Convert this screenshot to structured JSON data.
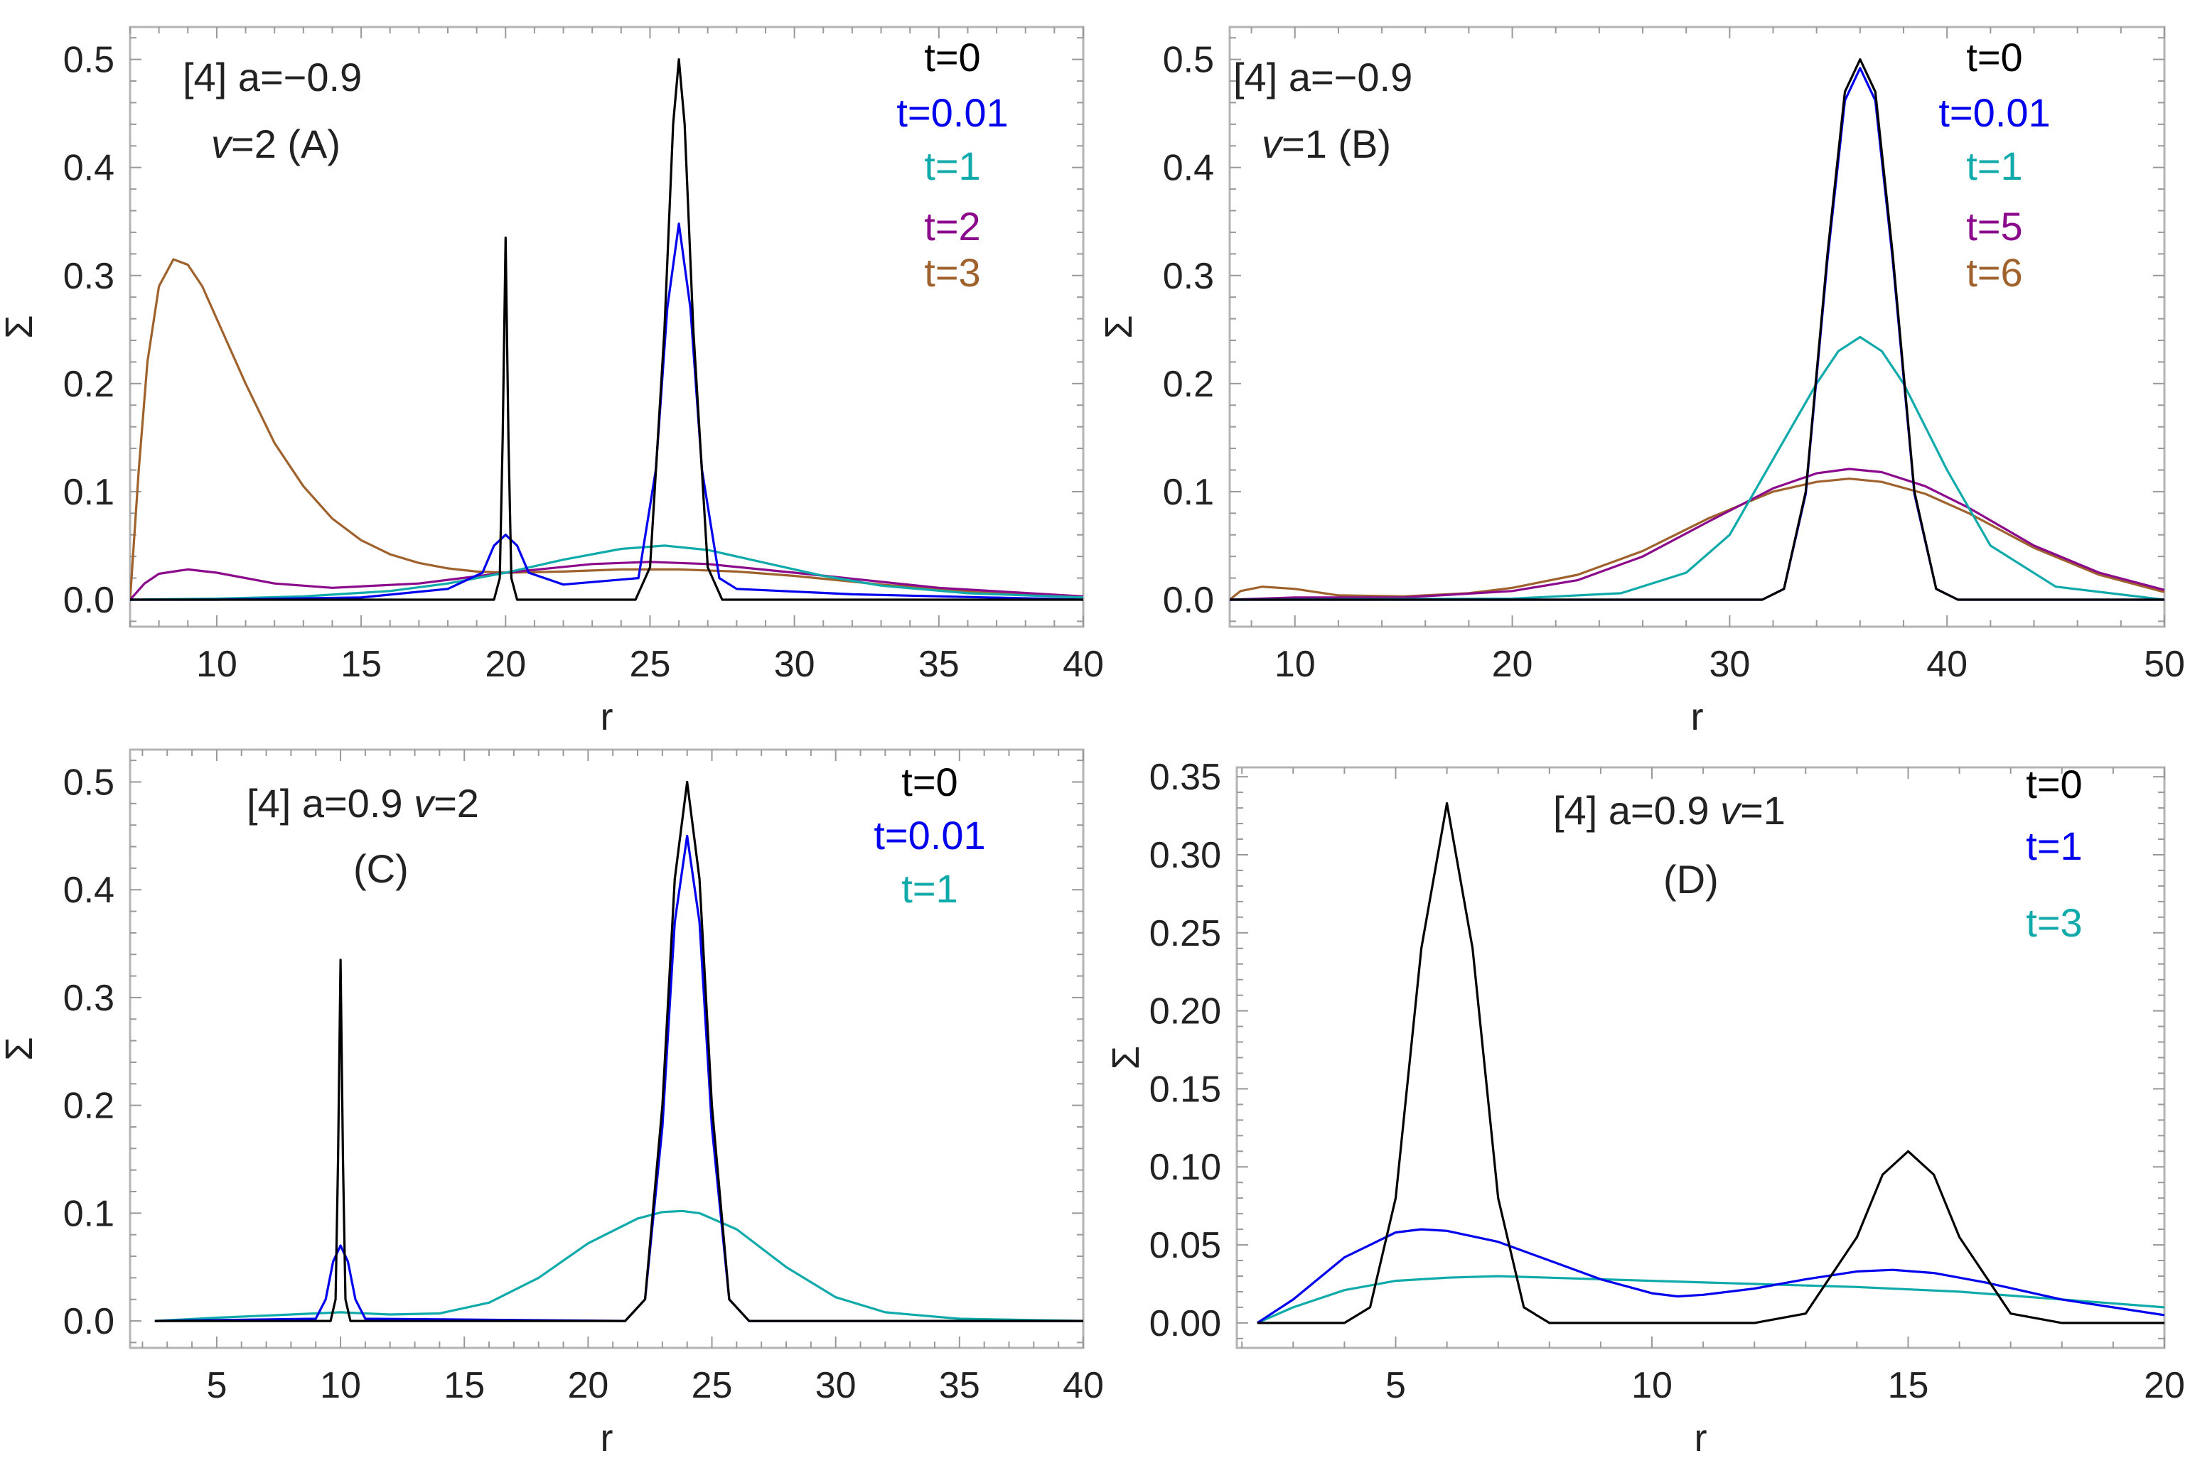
{
  "chart_data": [
    {
      "type": "line",
      "panel": "A",
      "annotation": [
        "[4] a=−0.9",
        "v=2 (A)"
      ],
      "xlabel": "r",
      "ylabel": "Σ",
      "xlim": [
        7,
        40
      ],
      "ylim": [
        -0.025,
        0.53
      ],
      "xticks": [
        10,
        15,
        20,
        25,
        30,
        35,
        40
      ],
      "xtick_labels": [
        "10",
        "15",
        "20",
        "25",
        "30",
        "35",
        "40"
      ],
      "yticks": [
        0.0,
        0.1,
        0.2,
        0.3,
        0.4,
        0.5
      ],
      "ytick_labels": [
        "0.0",
        "0.1",
        "0.2",
        "0.3",
        "0.4",
        "0.5"
      ],
      "grid": false,
      "legend": "top-right",
      "series": [
        {
          "name": "t=0",
          "color": "#000000",
          "x": [
            7,
            19.6,
            19.8,
            19.9,
            20.0,
            20.1,
            20.2,
            20.4,
            24.5,
            25.0,
            25.5,
            25.8,
            26.0,
            26.2,
            26.5,
            27.0,
            27.5,
            40
          ],
          "y": [
            0,
            0,
            0.02,
            0.15,
            0.335,
            0.15,
            0.02,
            0,
            0,
            0.03,
            0.25,
            0.44,
            0.5,
            0.44,
            0.25,
            0.03,
            0,
            0
          ]
        },
        {
          "name": "t=0.01",
          "color": "#0000ee",
          "x": [
            7,
            10,
            15,
            18,
            19.2,
            19.6,
            20.0,
            20.4,
            20.8,
            22,
            24.6,
            25.2,
            25.6,
            26.0,
            26.4,
            26.8,
            27.4,
            28,
            32,
            40
          ],
          "y": [
            0,
            0,
            0.002,
            0.01,
            0.025,
            0.05,
            0.06,
            0.05,
            0.025,
            0.014,
            0.02,
            0.12,
            0.27,
            0.348,
            0.27,
            0.12,
            0.02,
            0.01,
            0.005,
            0
          ]
        },
        {
          "name": "t=1",
          "color": "#10aaaa",
          "x": [
            7,
            10,
            13,
            16,
            18,
            20,
            22,
            24,
            25.5,
            27,
            29,
            31,
            33,
            36,
            40
          ],
          "y": [
            0,
            0.001,
            0.003,
            0.008,
            0.015,
            0.025,
            0.037,
            0.047,
            0.05,
            0.046,
            0.034,
            0.022,
            0.013,
            0.006,
            0.002
          ]
        },
        {
          "name": "t=2",
          "color": "#8b0a8b",
          "x": [
            7,
            7.5,
            8,
            9,
            10,
            12,
            14,
            17,
            20,
            23,
            25,
            27,
            30,
            35,
            40
          ],
          "y": [
            0,
            0.015,
            0.024,
            0.028,
            0.025,
            0.015,
            0.011,
            0.015,
            0.025,
            0.033,
            0.035,
            0.033,
            0.025,
            0.011,
            0.003
          ]
        },
        {
          "name": "t=3",
          "color": "#a0622d",
          "x": [
            7,
            7.3,
            7.6,
            8.0,
            8.5,
            9.0,
            9.5,
            10,
            11,
            12,
            13,
            14,
            15,
            16,
            17,
            18,
            19,
            20,
            22,
            24,
            26,
            28,
            30,
            33,
            36,
            40
          ],
          "y": [
            0,
            0.12,
            0.22,
            0.29,
            0.315,
            0.31,
            0.29,
            0.26,
            0.2,
            0.145,
            0.105,
            0.075,
            0.055,
            0.042,
            0.034,
            0.029,
            0.026,
            0.025,
            0.026,
            0.028,
            0.028,
            0.026,
            0.022,
            0.014,
            0.008,
            0.002
          ]
        }
      ]
    },
    {
      "type": "line",
      "panel": "B",
      "annotation": [
        "[4] a=−0.9",
        "v=1 (B)"
      ],
      "xlabel": "r",
      "ylabel": "Σ",
      "xlim": [
        7,
        50
      ],
      "ylim": [
        -0.025,
        0.53
      ],
      "xticks": [
        10,
        20,
        30,
        40,
        50
      ],
      "xtick_labels": [
        "10",
        "20",
        "30",
        "40",
        "50"
      ],
      "yticks": [
        0.0,
        0.1,
        0.2,
        0.3,
        0.4,
        0.5
      ],
      "ytick_labels": [
        "0.0",
        "0.1",
        "0.2",
        "0.3",
        "0.4",
        "0.5"
      ],
      "grid": false,
      "legend": "top-right",
      "series": [
        {
          "name": "t=0",
          "color": "#000000",
          "x": [
            7,
            31.5,
            32.5,
            33.5,
            34.5,
            35.3,
            36.0,
            36.7,
            37.5,
            38.5,
            39.5,
            40.5,
            50
          ],
          "y": [
            0,
            0,
            0.01,
            0.1,
            0.32,
            0.47,
            0.5,
            0.47,
            0.32,
            0.1,
            0.01,
            0,
            0
          ]
        },
        {
          "name": "t=0.01",
          "color": "#0000ee",
          "x": [
            7,
            31.5,
            32.5,
            33.5,
            34.5,
            35.3,
            36.0,
            36.7,
            37.5,
            38.5,
            39.5,
            40.5,
            50
          ],
          "y": [
            0,
            0,
            0.01,
            0.098,
            0.315,
            0.462,
            0.492,
            0.462,
            0.315,
            0.098,
            0.01,
            0,
            0
          ]
        },
        {
          "name": "t=1",
          "color": "#10aaaa",
          "x": [
            7,
            20,
            25,
            28,
            30,
            32,
            34,
            35,
            36,
            37,
            38,
            40,
            42,
            45,
            50
          ],
          "y": [
            0,
            0.001,
            0.006,
            0.025,
            0.06,
            0.13,
            0.2,
            0.23,
            0.243,
            0.23,
            0.2,
            0.12,
            0.05,
            0.012,
            0
          ]
        },
        {
          "name": "t=5",
          "color": "#8b0a8b",
          "x": [
            7,
            10,
            15,
            20,
            23,
            26,
            29,
            32,
            34,
            35.5,
            37,
            39,
            41,
            44,
            47,
            50
          ],
          "y": [
            0,
            0.002,
            0.002,
            0.008,
            0.018,
            0.04,
            0.072,
            0.103,
            0.117,
            0.121,
            0.118,
            0.105,
            0.085,
            0.05,
            0.025,
            0.009
          ]
        },
        {
          "name": "t=6",
          "color": "#a0622d",
          "x": [
            7,
            7.5,
            8.5,
            10,
            12,
            15,
            18,
            20,
            23,
            26,
            29,
            32,
            34,
            35.5,
            37,
            39,
            41,
            44,
            47,
            50
          ],
          "y": [
            0,
            0.008,
            0.012,
            0.01,
            0.004,
            0.003,
            0.006,
            0.011,
            0.023,
            0.045,
            0.075,
            0.1,
            0.109,
            0.112,
            0.109,
            0.098,
            0.08,
            0.048,
            0.023,
            0.007
          ]
        }
      ]
    },
    {
      "type": "line",
      "panel": "C",
      "annotation": [
        "[4] a=0.9 v=2",
        "(C)"
      ],
      "xlabel": "r",
      "ylabel": "Σ",
      "xlim": [
        1.5,
        40
      ],
      "ylim": [
        -0.025,
        0.53
      ],
      "xticks": [
        5,
        10,
        15,
        20,
        25,
        30,
        35,
        40
      ],
      "xtick_labels": [
        "5",
        "10",
        "15",
        "20",
        "25",
        "30",
        "35",
        "40"
      ],
      "yticks": [
        0.0,
        0.1,
        0.2,
        0.3,
        0.4,
        0.5
      ],
      "ytick_labels": [
        "0.0",
        "0.1",
        "0.2",
        "0.3",
        "0.4",
        "0.5"
      ],
      "grid": false,
      "legend": "top-right",
      "series": [
        {
          "name": "t=0",
          "color": "#000000",
          "x": [
            2.5,
            9.6,
            9.8,
            9.9,
            10.0,
            10.1,
            10.2,
            10.4,
            21.5,
            22.3,
            23.0,
            23.5,
            24.0,
            24.5,
            25.0,
            25.7,
            26.5,
            40
          ],
          "y": [
            0,
            0,
            0.02,
            0.15,
            0.335,
            0.15,
            0.02,
            0,
            0,
            0.02,
            0.2,
            0.41,
            0.5,
            0.41,
            0.2,
            0.02,
            0,
            0
          ]
        },
        {
          "name": "t=0.01",
          "color": "#0000ee",
          "x": [
            2.5,
            9.0,
            9.4,
            9.7,
            10.0,
            10.3,
            10.6,
            11.0,
            21.5,
            22.3,
            23.0,
            23.5,
            24.0,
            24.5,
            25.0,
            25.7,
            26.5,
            40
          ],
          "y": [
            0,
            0.002,
            0.02,
            0.055,
            0.07,
            0.055,
            0.02,
            0.002,
            0,
            0.02,
            0.18,
            0.37,
            0.45,
            0.37,
            0.18,
            0.02,
            0,
            0
          ]
        },
        {
          "name": "t=1",
          "color": "#10aaaa",
          "x": [
            2.5,
            5,
            8,
            10,
            12,
            14,
            16,
            18,
            20,
            22,
            23,
            23.8,
            24.5,
            26,
            28,
            30,
            32,
            35,
            40
          ],
          "y": [
            0,
            0.003,
            0.006,
            0.008,
            0.006,
            0.007,
            0.017,
            0.04,
            0.072,
            0.095,
            0.101,
            0.102,
            0.1,
            0.085,
            0.05,
            0.022,
            0.008,
            0.002,
            0
          ]
        }
      ]
    },
    {
      "type": "line",
      "panel": "D",
      "annotation": [
        "[4] a=0.9  v=1",
        "(D)"
      ],
      "xlabel": "r",
      "ylabel": "Σ",
      "xlim": [
        1.9,
        20
      ],
      "ylim": [
        -0.016,
        0.356
      ],
      "xticks": [
        5,
        10,
        15,
        20
      ],
      "xtick_labels": [
        "5",
        "10",
        "15",
        "20"
      ],
      "yticks": [
        0.0,
        0.05,
        0.1,
        0.15,
        0.2,
        0.25,
        0.3,
        0.35
      ],
      "ytick_labels": [
        "0.00",
        "0.05",
        "0.10",
        "0.15",
        "0.20",
        "0.25",
        "0.30",
        "0.35"
      ],
      "grid": false,
      "legend": "top-right",
      "series": [
        {
          "name": "t=0",
          "color": "#000000",
          "x": [
            2.3,
            4.0,
            4.5,
            5.0,
            5.5,
            6.0,
            6.5,
            7.0,
            7.5,
            8.0,
            12.0,
            13.0,
            14.0,
            14.5,
            15.0,
            15.5,
            16.0,
            17.0,
            18.0,
            20
          ],
          "y": [
            0,
            0,
            0.01,
            0.08,
            0.24,
            0.333,
            0.24,
            0.08,
            0.01,
            0,
            0,
            0.006,
            0.055,
            0.095,
            0.11,
            0.095,
            0.055,
            0.006,
            0,
            0
          ]
        },
        {
          "name": "t=1",
          "color": "#0000ee",
          "x": [
            2.3,
            3,
            4,
            5,
            5.5,
            6,
            7,
            8,
            9,
            10,
            10.5,
            11,
            12,
            13,
            14,
            14.7,
            15.5,
            16.5,
            18,
            20
          ],
          "y": [
            0,
            0.015,
            0.042,
            0.058,
            0.06,
            0.059,
            0.052,
            0.04,
            0.028,
            0.019,
            0.017,
            0.018,
            0.022,
            0.028,
            0.033,
            0.034,
            0.032,
            0.026,
            0.015,
            0.005
          ]
        },
        {
          "name": "t=3",
          "color": "#10aaaa",
          "x": [
            2.3,
            3,
            4,
            5,
            6,
            7,
            8,
            10,
            12,
            14,
            16,
            18,
            20
          ],
          "y": [
            0,
            0.01,
            0.021,
            0.027,
            0.029,
            0.03,
            0.029,
            0.027,
            0.025,
            0.023,
            0.02,
            0.015,
            0.01
          ]
        }
      ]
    }
  ]
}
